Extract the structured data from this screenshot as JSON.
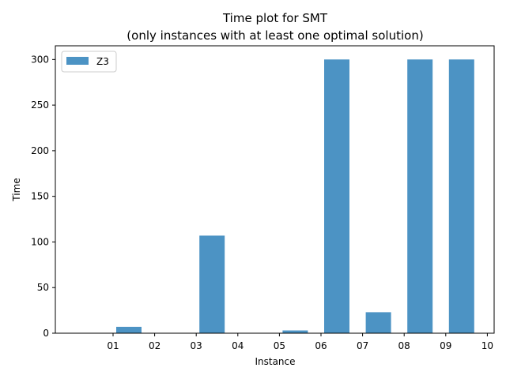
{
  "chart_data": {
    "type": "bar",
    "title": "Time plot for SMT",
    "subtitle": "(only instances with at least one optimal solution)",
    "xlabel": "Instance",
    "ylabel": "Time",
    "categories": [
      "01",
      "02",
      "03",
      "04",
      "05",
      "06",
      "07",
      "08",
      "09",
      "10"
    ],
    "series": [
      {
        "name": "Z3",
        "color": "#4c93c4",
        "values": [
          7,
          0,
          107,
          0,
          3,
          300,
          23,
          300,
          300,
          0
        ]
      }
    ],
    "ylim": [
      0,
      315
    ],
    "yticks": [
      0,
      50,
      100,
      150,
      200,
      250,
      300
    ],
    "grid": false,
    "legend": "top-left"
  }
}
